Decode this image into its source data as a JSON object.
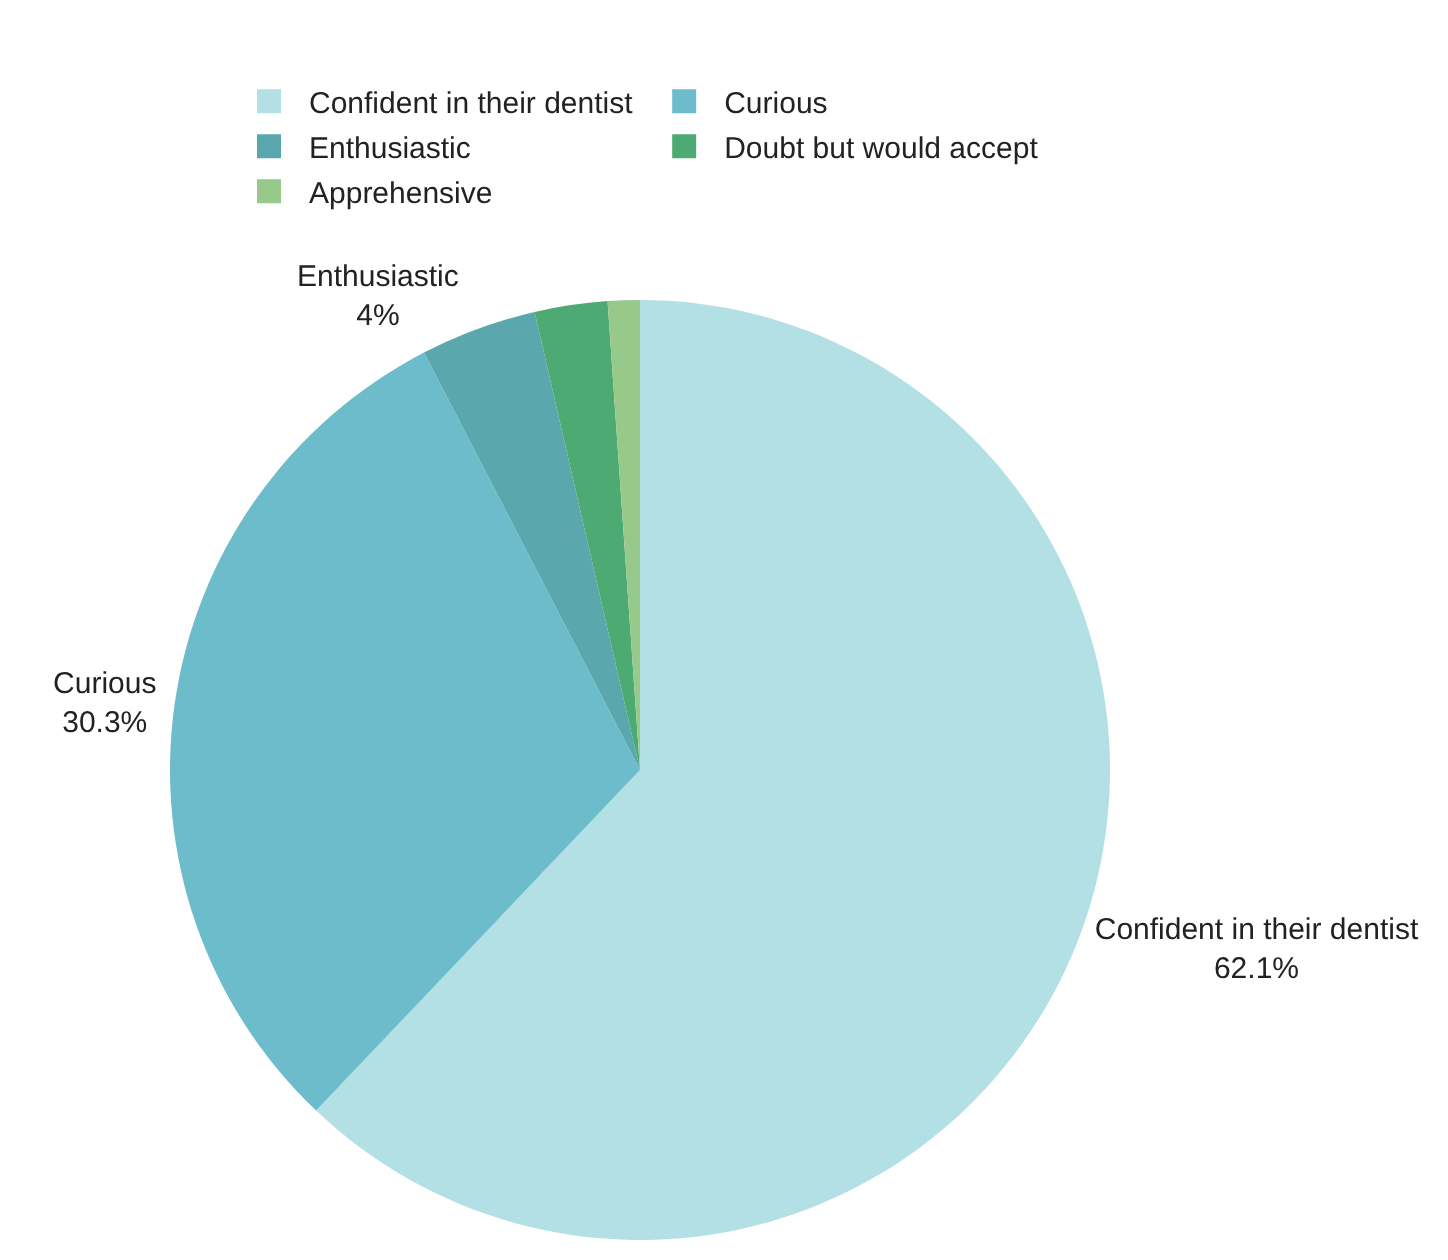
{
  "chart_data": {
    "type": "pie",
    "categories": [
      "Confident in their dentist",
      "Curious",
      "Enthusiastic",
      "Doubt but would accept",
      "Apprehensive"
    ],
    "values": [
      62.1,
      30.3,
      4,
      2.5,
      1.1
    ],
    "colors": [
      "#b3e0e4",
      "#6dbccc",
      "#5aa8ad",
      "#4caa72",
      "#96c98a"
    ],
    "value_labels": [
      "62.1%",
      "30.3%",
      "4%",
      null,
      null
    ],
    "legend": "top"
  }
}
